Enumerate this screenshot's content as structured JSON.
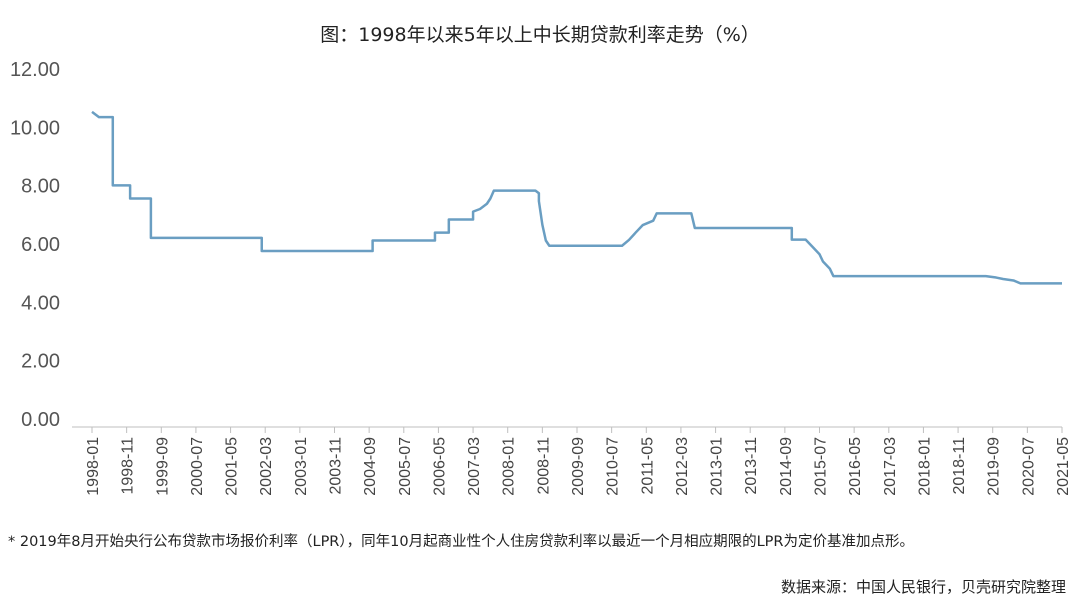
{
  "chart_data": {
    "type": "line",
    "title": "图：1998年以来5年以上中长期贷款利率走势（%）",
    "xlabel": "",
    "ylabel": "",
    "ylim": [
      0,
      12
    ],
    "yticks": [
      "0.00",
      "2.00",
      "4.00",
      "6.00",
      "8.00",
      "10.00",
      "12.00"
    ],
    "grid": false,
    "legend": "none",
    "x_tick_labels": [
      "1998-01",
      "1998-11",
      "1999-09",
      "2000-07",
      "2001-05",
      "2002-03",
      "2003-01",
      "2003-11",
      "2004-09",
      "2005-07",
      "2006-05",
      "2007-03",
      "2008-01",
      "2008-11",
      "2009-09",
      "2010-07",
      "2011-05",
      "2012-03",
      "2013-01",
      "2013-11",
      "2014-09",
      "2015-07",
      "2016-05",
      "2017-03",
      "2018-01",
      "2018-11",
      "2019-09",
      "2020-07",
      "2021-05"
    ],
    "x_range": [
      "1998-01",
      "2021-05"
    ],
    "line_color": "#6a9ec2",
    "series": [
      {
        "points": [
          [
            "1998-01",
            10.53
          ],
          [
            "1998-03",
            10.35
          ],
          [
            "1998-07",
            10.35
          ],
          [
            "1998-07",
            8.01
          ],
          [
            "1998-12",
            8.01
          ],
          [
            "1998-12",
            7.56
          ],
          [
            "1999-06",
            7.56
          ],
          [
            "1999-06",
            6.21
          ],
          [
            "2002-02",
            6.21
          ],
          [
            "2002-02",
            5.76
          ],
          [
            "2004-10",
            5.76
          ],
          [
            "2004-10",
            6.12
          ],
          [
            "2006-04",
            6.12
          ],
          [
            "2006-04",
            6.39
          ],
          [
            "2006-08",
            6.39
          ],
          [
            "2006-08",
            6.84
          ],
          [
            "2007-03",
            6.84
          ],
          [
            "2007-03",
            7.11
          ],
          [
            "2007-05",
            7.2
          ],
          [
            "2007-07",
            7.38
          ],
          [
            "2007-08",
            7.56
          ],
          [
            "2007-09",
            7.83
          ],
          [
            "2008-09",
            7.83
          ],
          [
            "2008-10",
            7.74
          ],
          [
            "2008-10",
            7.47
          ],
          [
            "2008-11",
            6.66
          ],
          [
            "2008-12",
            6.12
          ],
          [
            "2009-01",
            5.94
          ],
          [
            "2010-10",
            5.94
          ],
          [
            "2010-12",
            6.14
          ],
          [
            "2011-02",
            6.4
          ],
          [
            "2011-04",
            6.65
          ],
          [
            "2011-07",
            6.8
          ],
          [
            "2011-08",
            7.05
          ],
          [
            "2012-06",
            7.05
          ],
          [
            "2012-07",
            6.55
          ],
          [
            "2014-11",
            6.55
          ],
          [
            "2014-11",
            6.15
          ],
          [
            "2015-03",
            6.15
          ],
          [
            "2015-05",
            5.9
          ],
          [
            "2015-07",
            5.65
          ],
          [
            "2015-08",
            5.4
          ],
          [
            "2015-10",
            5.15
          ],
          [
            "2015-11",
            4.9
          ],
          [
            "2019-07",
            4.9
          ],
          [
            "2019-10",
            4.85
          ],
          [
            "2019-12",
            4.8
          ],
          [
            "2020-03",
            4.75
          ],
          [
            "2020-05",
            4.65
          ],
          [
            "2021-05",
            4.65
          ]
        ]
      }
    ]
  },
  "footnote": "* 2019年8月开始央行公布贷款市场报价利率（LPR），同年10月起商业性个人住房贷款利率以最近一个月相应期限的LPR为定价基准加点形。",
  "source": "数据来源：中国人民银行，贝壳研究院整理"
}
